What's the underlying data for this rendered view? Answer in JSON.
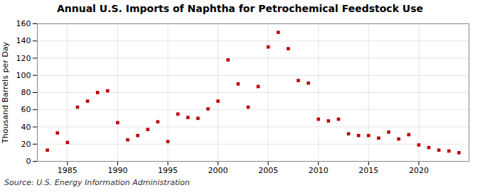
{
  "chart_data": {
    "type": "scatter",
    "title": "Annual U.S. Imports of Naphtha for Petrochemical Feedstock Use",
    "ylabel": "Thousand Barrels per Day",
    "source": "Source: U.S. Energy Information Administration",
    "x": [
      1983,
      1984,
      1985,
      1986,
      1987,
      1988,
      1989,
      1990,
      1991,
      1992,
      1993,
      1994,
      1995,
      1996,
      1997,
      1998,
      1999,
      2000,
      2001,
      2002,
      2003,
      2004,
      2005,
      2006,
      2007,
      2008,
      2009,
      2010,
      2011,
      2012,
      2013,
      2014,
      2015,
      2016,
      2017,
      2018,
      2019,
      2020,
      2021,
      2022,
      2023,
      2024
    ],
    "values": [
      13,
      33,
      22,
      63,
      70,
      80,
      82,
      45,
      25,
      30,
      37,
      46,
      23,
      55,
      51,
      50,
      61,
      70,
      118,
      90,
      63,
      87,
      133,
      150,
      131,
      94,
      91,
      49,
      47,
      49,
      32,
      30,
      30,
      27,
      34,
      26,
      31,
      19,
      16,
      13,
      12,
      10
    ],
    "color": "#bb0000",
    "marker": "square",
    "xlim": [
      1982,
      2025
    ],
    "xticks": [
      1985,
      1990,
      1995,
      2000,
      2005,
      2010,
      2015,
      2020
    ],
    "ylim": [
      0,
      160
    ],
    "yticks": [
      0,
      20,
      40,
      60,
      80,
      100,
      120,
      140,
      160
    ],
    "grid": true
  }
}
